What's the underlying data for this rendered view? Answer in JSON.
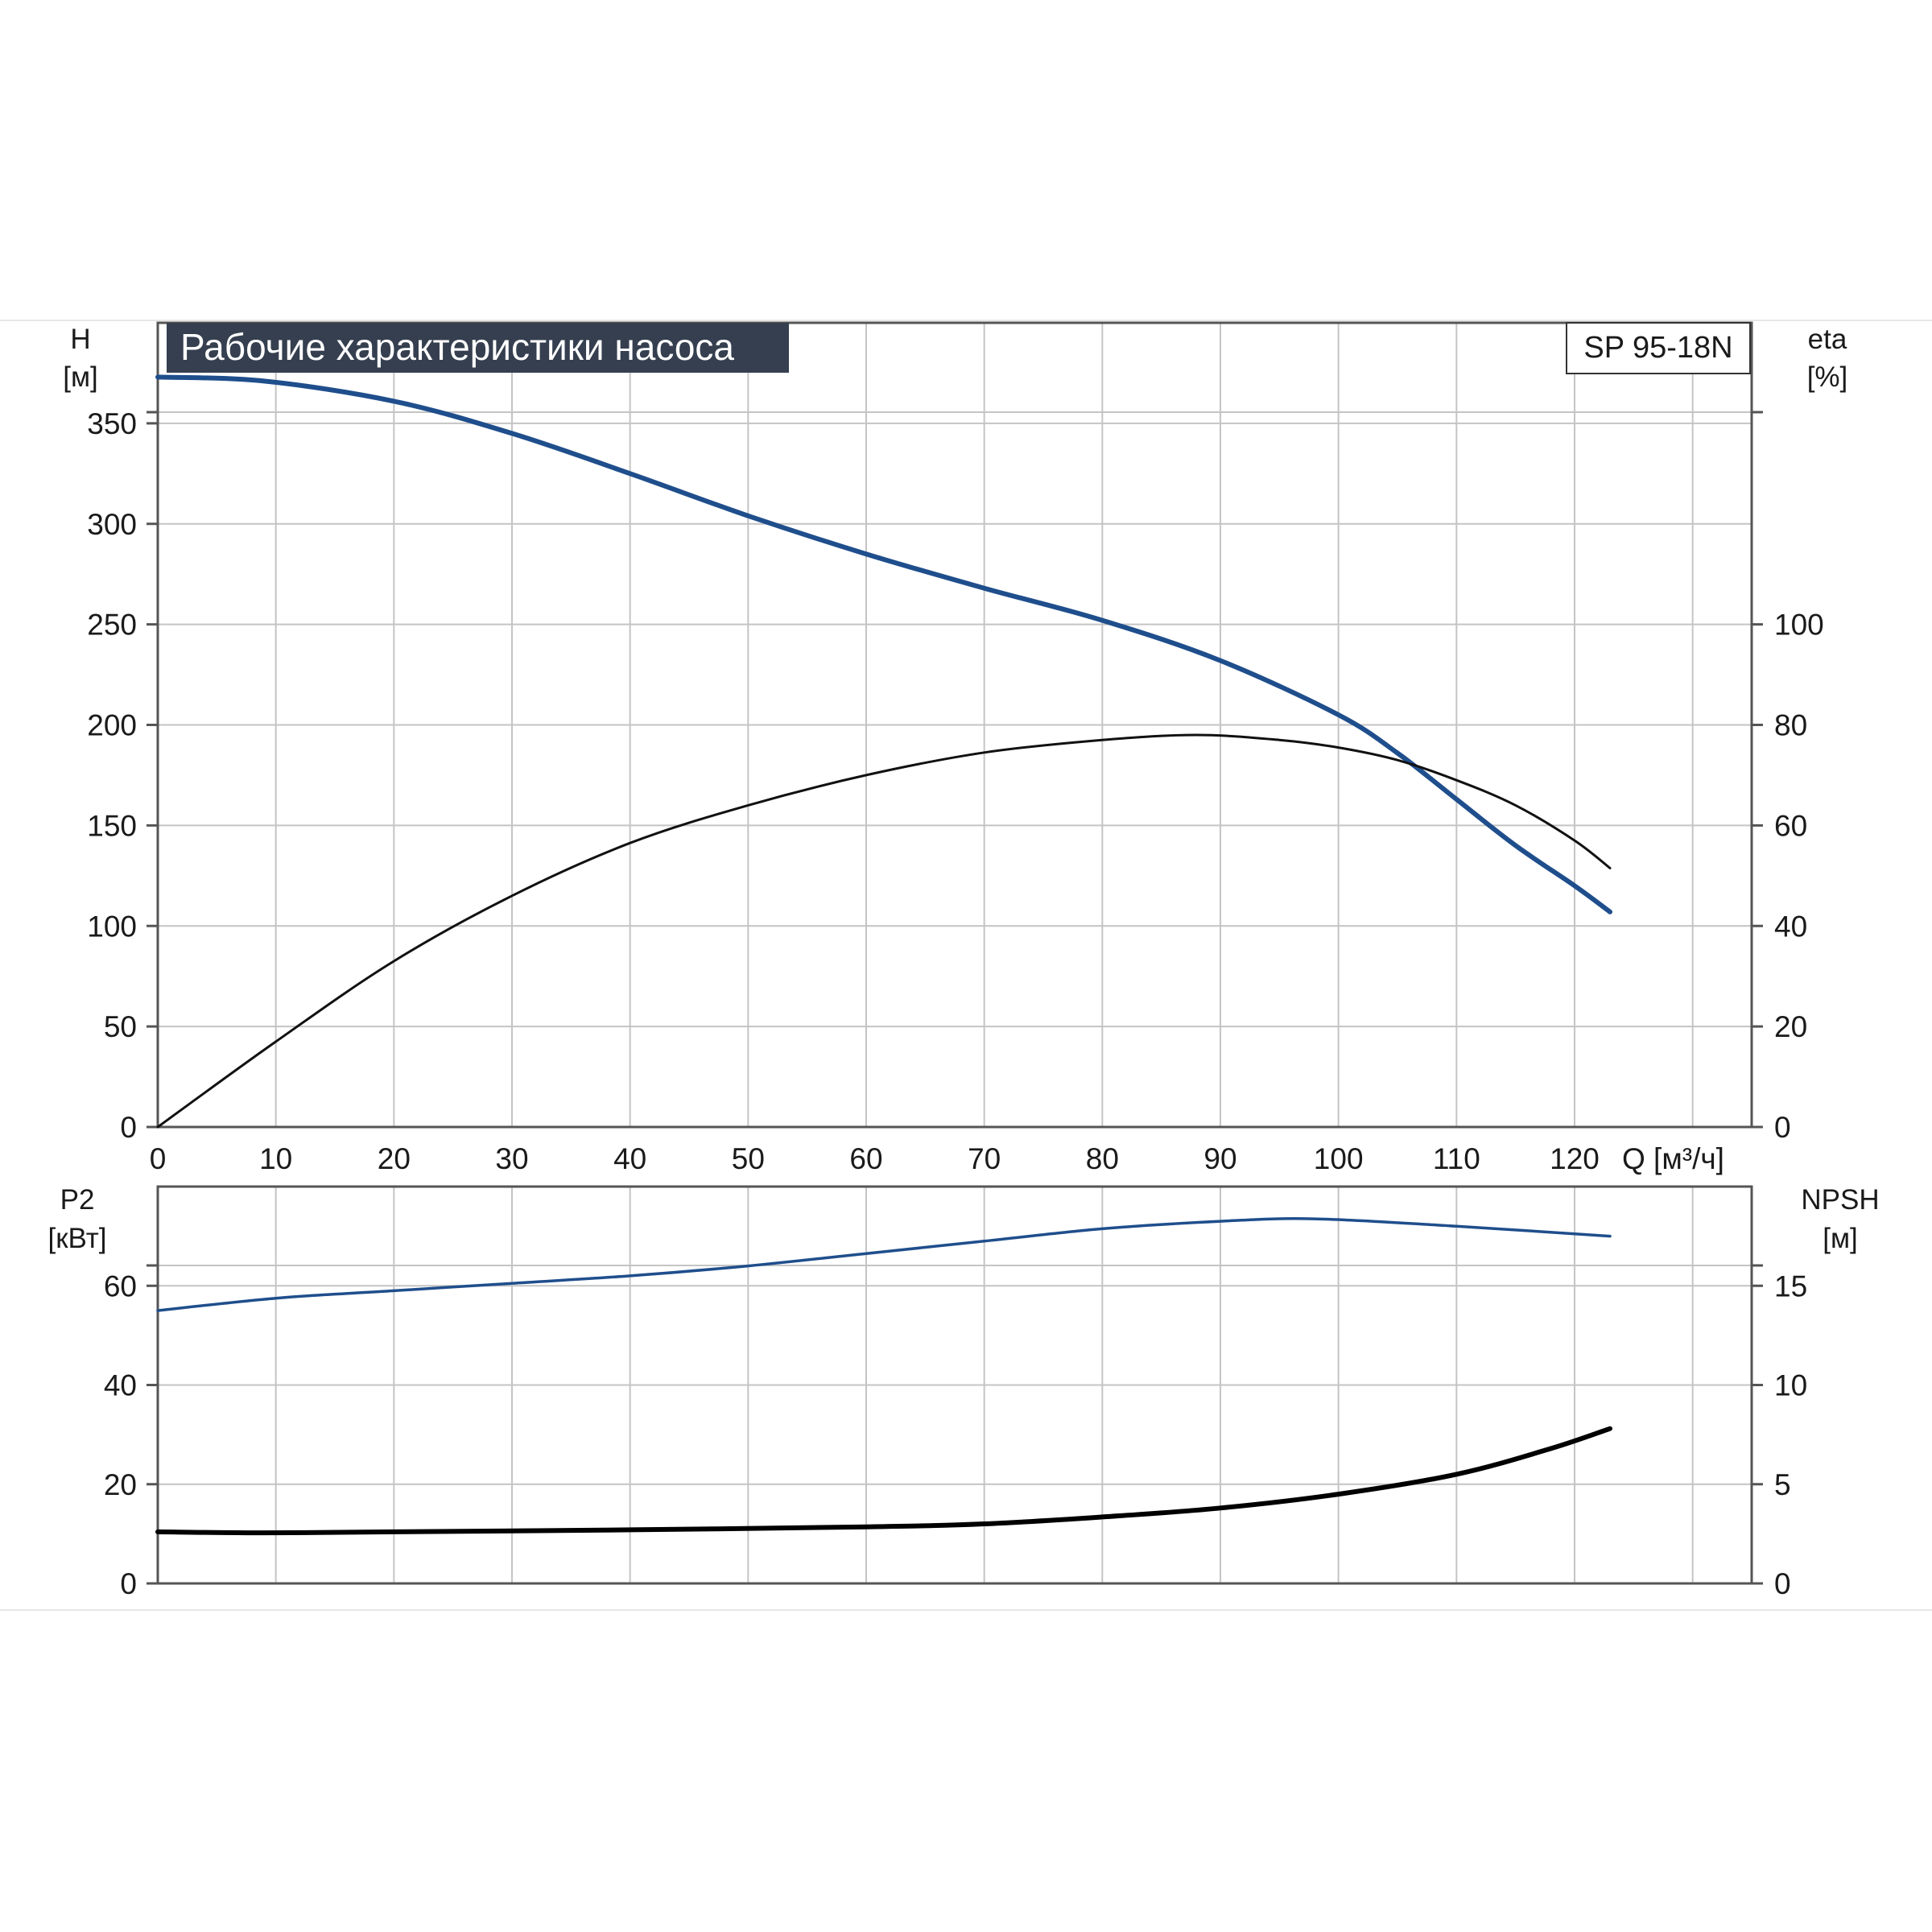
{
  "chart_data": [
    {
      "type": "line",
      "title": "Рабочие характеристики насоса",
      "model": "SP 95-18N",
      "xlabel": "Q [м³/ч]",
      "xlim": [
        0,
        135
      ],
      "xticks": [
        "0",
        "10",
        "20",
        "30",
        "40",
        "50",
        "60",
        "70",
        "80",
        "90",
        "100",
        "110",
        "120"
      ],
      "ylabel_left": [
        "H",
        "[м]"
      ],
      "ylim_left": [
        0,
        400
      ],
      "yticks_left": [
        "0",
        "50",
        "100",
        "150",
        "200",
        "250",
        "300",
        "350"
      ],
      "ylabel_right": [
        "eta",
        "[%]"
      ],
      "ylim_right": [
        0,
        160
      ],
      "yticks_right": [
        "0",
        "20",
        "40",
        "60",
        "80",
        "100"
      ],
      "grid": true,
      "series": [
        {
          "axis": "left",
          "color": "#1f4e8c",
          "width": 6,
          "points": [
            [
              0,
              373
            ],
            [
              9,
              371
            ],
            [
              20,
              361
            ],
            [
              30,
              345
            ],
            [
              40,
              325
            ],
            [
              50,
              304
            ],
            [
              60,
              285
            ],
            [
              70,
              268
            ],
            [
              80,
              252
            ],
            [
              90,
              232
            ],
            [
              100,
              205
            ],
            [
              105,
              186
            ],
            [
              110,
              163
            ],
            [
              115,
              140
            ],
            [
              120,
              120
            ],
            [
              123,
              107
            ]
          ]
        },
        {
          "axis": "right",
          "color": "#111111",
          "width": 3,
          "points": [
            [
              0,
              0
            ],
            [
              10,
              17
            ],
            [
              20,
              33
            ],
            [
              30,
              46
            ],
            [
              40,
              56.5
            ],
            [
              50,
              64
            ],
            [
              60,
              70
            ],
            [
              70,
              74.5
            ],
            [
              80,
              77
            ],
            [
              88,
              78
            ],
            [
              95,
              77
            ],
            [
              100,
              75.5
            ],
            [
              105,
              73
            ],
            [
              110,
              69
            ],
            [
              115,
              64
            ],
            [
              120,
              57
            ],
            [
              123,
              51.5
            ]
          ]
        }
      ]
    },
    {
      "type": "line",
      "xlim": [
        0,
        135
      ],
      "ylabel_left": [
        "P2",
        "[кВт]"
      ],
      "ylim_left": [
        0,
        80
      ],
      "yticks_left": [
        "0",
        "20",
        "40",
        "60"
      ],
      "ylabel_right": [
        "NPSH",
        "[м]"
      ],
      "ylim_right": [
        0,
        20
      ],
      "yticks_right": [
        "0",
        "5",
        "10",
        "15"
      ],
      "grid": true,
      "series": [
        {
          "axis": "left",
          "color": "#1f4e8c",
          "width": 3.5,
          "points": [
            [
              0,
              55
            ],
            [
              10,
              57.5
            ],
            [
              20,
              59
            ],
            [
              30,
              60.5
            ],
            [
              40,
              62
            ],
            [
              50,
              64
            ],
            [
              60,
              66.5
            ],
            [
              70,
              69
            ],
            [
              80,
              71.5
            ],
            [
              90,
              73
            ],
            [
              98,
              73.5
            ],
            [
              110,
              72
            ],
            [
              123,
              70
            ]
          ]
        },
        {
          "axis": "right",
          "color": "#000000",
          "width": 6,
          "points": [
            [
              0,
              2.6
            ],
            [
              9,
              2.55
            ],
            [
              20,
              2.6
            ],
            [
              40,
              2.7
            ],
            [
              60,
              2.85
            ],
            [
              70,
              3.0
            ],
            [
              80,
              3.35
            ],
            [
              90,
              3.8
            ],
            [
              100,
              4.5
            ],
            [
              110,
              5.5
            ],
            [
              118,
              6.8
            ],
            [
              123,
              7.8
            ]
          ]
        }
      ]
    }
  ]
}
